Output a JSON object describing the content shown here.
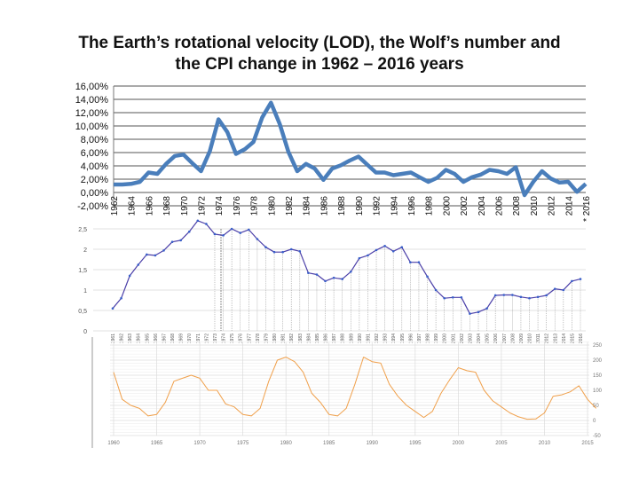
{
  "title_line1": "The Earth’s rotational velocity (LOD), the Wolf’s number and",
  "title_line2": "the CPI change in 1962 – 2016 years",
  "chart_data": [
    {
      "type": "line",
      "ylim": [
        -2,
        16
      ],
      "yticks": [
        "-2,00%",
        "0,00%",
        "2,00%",
        "4,00%",
        "6,00%",
        "8,00%",
        "10,00%",
        "12,00%",
        "14,00%",
        "16,00%"
      ],
      "xticks": [
        "1962",
        "1964",
        "1966",
        "1968",
        "1970",
        "1972",
        "1974",
        "1976",
        "1978",
        "1980",
        "1982",
        "1984",
        "1986",
        "1988",
        "1990",
        "1992",
        "1994",
        "1996",
        "1998",
        "2000",
        "2002",
        "2004",
        "2006",
        "2008",
        "2010",
        "2012",
        "2014",
        "* 2016"
      ],
      "grid": true,
      "color": "#4a7ebb",
      "x": [
        1962,
        1963,
        1964,
        1965,
        1966,
        1967,
        1968,
        1969,
        1970,
        1971,
        1972,
        1973,
        1974,
        1975,
        1976,
        1977,
        1978,
        1979,
        1980,
        1981,
        1982,
        1983,
        1984,
        1985,
        1986,
        1987,
        1988,
        1989,
        1990,
        1991,
        1992,
        1993,
        1994,
        1995,
        1996,
        1997,
        1998,
        1999,
        2000,
        2001,
        2002,
        2003,
        2004,
        2005,
        2006,
        2007,
        2008,
        2009,
        2010,
        2011,
        2012,
        2013,
        2014,
        2015,
        2016
      ],
      "values": [
        1.2,
        1.2,
        1.3,
        1.6,
        3.0,
        2.8,
        4.3,
        5.5,
        5.7,
        4.4,
        3.2,
        6.2,
        11.0,
        9.1,
        5.8,
        6.5,
        7.6,
        11.3,
        13.5,
        10.3,
        6.1,
        3.2,
        4.3,
        3.6,
        1.9,
        3.6,
        4.1,
        4.8,
        5.4,
        4.2,
        3.0,
        3.0,
        2.6,
        2.8,
        3.0,
        2.3,
        1.6,
        2.2,
        3.4,
        2.8,
        1.6,
        2.3,
        2.7,
        3.4,
        3.2,
        2.8,
        3.8,
        -0.4,
        1.6,
        3.2,
        2.1,
        1.5,
        1.6,
        0.1,
        1.3
      ]
    },
    {
      "type": "line",
      "ylim": [
        0,
        2.5
      ],
      "yticks": [
        "0",
        "0,5",
        "1",
        "1,5",
        "2",
        "2,5"
      ],
      "color": "#4b3fa8",
      "x": [
        1961,
        1962,
        1963,
        1964,
        1965,
        1966,
        1967,
        1968,
        1969,
        1970,
        1971,
        1972,
        1973,
        1974,
        1975,
        1976,
        1977,
        1978,
        1979,
        1980,
        1981,
        1982,
        1983,
        1984,
        1985,
        1986,
        1987,
        1988,
        1989,
        1990,
        1991,
        1992,
        1993,
        1994,
        1995,
        1996,
        1997,
        1998,
        1999,
        2000,
        2001,
        2002,
        2003,
        2004,
        2005,
        2006,
        2007,
        2008,
        2009,
        2010,
        2011,
        2012,
        2013,
        2014,
        2015,
        2016
      ],
      "values": [
        0.55,
        0.8,
        1.35,
        1.62,
        1.87,
        1.85,
        1.97,
        2.18,
        2.22,
        2.43,
        2.7,
        2.62,
        2.37,
        2.34,
        2.5,
        2.4,
        2.48,
        2.25,
        2.05,
        1.93,
        1.93,
        2.0,
        1.95,
        1.42,
        1.38,
        1.22,
        1.3,
        1.27,
        1.45,
        1.78,
        1.85,
        1.98,
        2.08,
        1.95,
        2.05,
        1.68,
        1.68,
        1.33,
        1.0,
        0.8,
        0.82,
        0.82,
        0.42,
        0.46,
        0.55,
        0.87,
        0.88,
        0.88,
        0.83,
        0.8,
        0.83,
        0.87,
        1.03,
        1.0,
        1.22,
        1.27
      ]
    },
    {
      "type": "line",
      "ylim": [
        -50,
        250
      ],
      "yticks": [
        "-50",
        "0",
        "50",
        "100",
        "150",
        "200",
        "250"
      ],
      "xticks": [
        "1960",
        "1965",
        "1970",
        "1975",
        "1980",
        "1985",
        "1990",
        "1995",
        "2000",
        "2005",
        "2010",
        "2015"
      ],
      "color": "#f0a04b",
      "x": [
        1960,
        1961,
        1962,
        1963,
        1964,
        1965,
        1966,
        1967,
        1968,
        1969,
        1970,
        1971,
        1972,
        1973,
        1974,
        1975,
        1976,
        1977,
        1978,
        1979,
        1980,
        1981,
        1982,
        1983,
        1984,
        1985,
        1986,
        1987,
        1988,
        1989,
        1990,
        1991,
        1992,
        1993,
        1994,
        1995,
        1996,
        1997,
        1998,
        1999,
        2000,
        2001,
        2002,
        2003,
        2004,
        2005,
        2006,
        2007,
        2008,
        2009,
        2010,
        2011,
        2012,
        2013,
        2014,
        2015,
        2016
      ],
      "values": [
        160,
        70,
        50,
        40,
        15,
        20,
        60,
        130,
        140,
        150,
        140,
        100,
        100,
        55,
        45,
        20,
        15,
        40,
        130,
        200,
        210,
        195,
        160,
        90,
        60,
        20,
        15,
        40,
        120,
        210,
        195,
        190,
        120,
        80,
        50,
        30,
        10,
        30,
        90,
        135,
        175,
        165,
        160,
        100,
        65,
        45,
        25,
        12,
        4,
        5,
        25,
        80,
        85,
        95,
        115,
        70,
        40
      ]
    }
  ]
}
